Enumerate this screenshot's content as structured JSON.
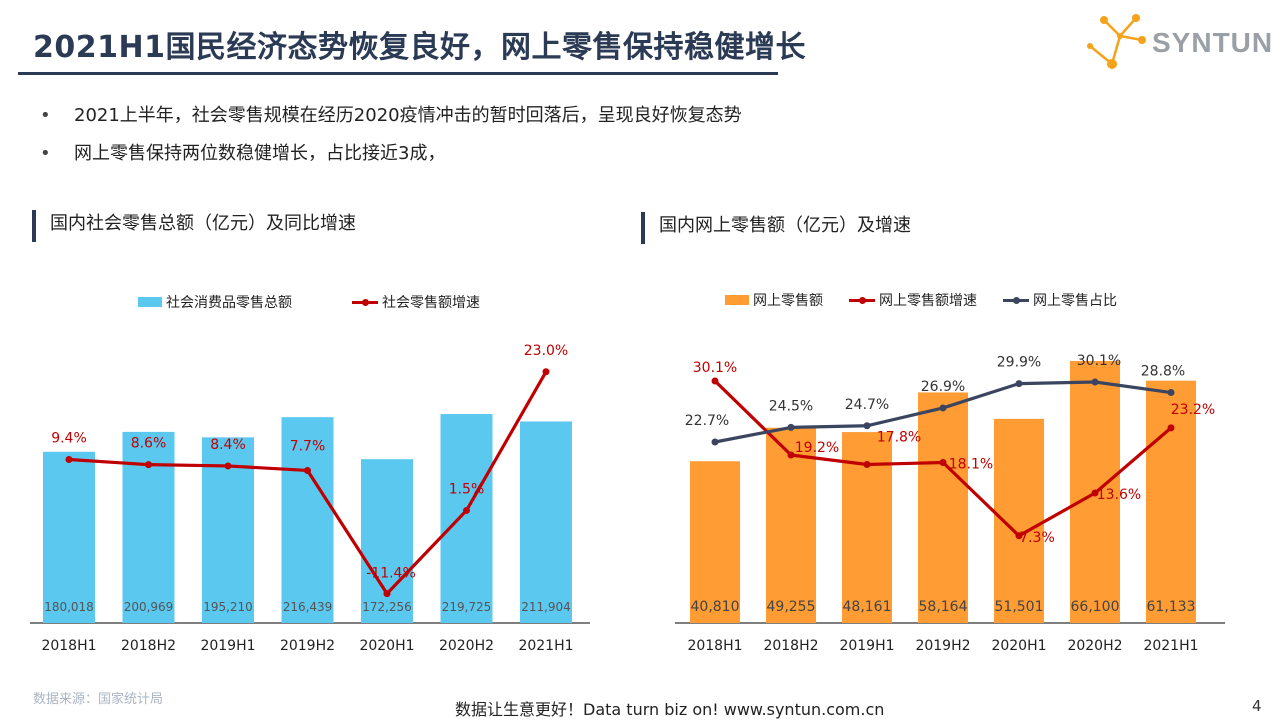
{
  "header": {
    "title": "2021H1国民经济态势恢复良好，网上零售保持稳健增长",
    "logo_text": "SYNTUN"
  },
  "bullets": [
    "2021上半年，社会零售规模在经历2020疫情冲击的暂时回落后，呈现良好恢复态势",
    "网上零售保持两位数稳健增长，占比接近3成，"
  ],
  "bullet_marker": "•",
  "left_section": {
    "title": "国内社会零售总额（亿元）及同比增速"
  },
  "right_section": {
    "title": "国内网上零售额（亿元）及增速"
  },
  "colors": {
    "navy": "#2b3a55",
    "light_blue_bar": "#5bc8f0",
    "orange_bar": "#ff9c33",
    "red_line": "#c00000",
    "dark_line": "#3b4560"
  },
  "chart_data": [
    {
      "type": "bar",
      "categories": [
        "2018H1",
        "2018H2",
        "2019H1",
        "2019H2",
        "2020H1",
        "2020H2",
        "2021H1"
      ],
      "series": [
        {
          "name": "社会消费品零售总额",
          "kind": "bar",
          "values": [
            180018,
            200969,
            195210,
            216439,
            172256,
            219725,
            211904
          ],
          "labels": [
            "180,018",
            "200,969",
            "195,210",
            "216,439",
            "172,256",
            "219,725",
            "211,904"
          ]
        },
        {
          "name": "社会零售额增速",
          "kind": "line",
          "values": [
            9.4,
            8.6,
            8.4,
            7.7,
            -11.4,
            1.5,
            23.0
          ],
          "labels": [
            "9.4%",
            "8.6%",
            "8.4%",
            "7.7%",
            "-11.4%",
            "1.5%",
            "23.0%"
          ]
        }
      ],
      "legend_position": "top",
      "grid": false
    },
    {
      "type": "bar",
      "categories": [
        "2018H1",
        "2018H2",
        "2019H1",
        "2019H2",
        "2020H1",
        "2020H2",
        "2021H1"
      ],
      "series": [
        {
          "name": "网上零售额",
          "kind": "bar",
          "values": [
            40810,
            49255,
            48161,
            58164,
            51501,
            66100,
            61133
          ],
          "labels": [
            "40,810",
            "49,255",
            "48,161",
            "58,164",
            "51,501",
            "66,100",
            "61,133"
          ]
        },
        {
          "name": "网上零售额增速",
          "kind": "line",
          "values": [
            30.1,
            19.2,
            17.8,
            18.1,
            7.3,
            13.6,
            23.2
          ],
          "labels": [
            "30.1%",
            "19.2%",
            "17.8%",
            "18.1%",
            "7.3%",
            "13.6%",
            "23.2%"
          ]
        },
        {
          "name": "网上零售占比",
          "kind": "line",
          "values": [
            22.7,
            24.5,
            24.7,
            26.9,
            29.9,
            30.1,
            28.8
          ],
          "labels": [
            "22.7%",
            "24.5%",
            "24.7%",
            "26.9%",
            "29.9%",
            "30.1%",
            "28.8%"
          ]
        }
      ],
      "legend_position": "top",
      "grid": false
    }
  ],
  "footer": {
    "source": "数据来源：国家统计局",
    "slogan": "数据让生意更好！Data turn biz on!  www.syntun.com.cn",
    "page_number": "4"
  }
}
